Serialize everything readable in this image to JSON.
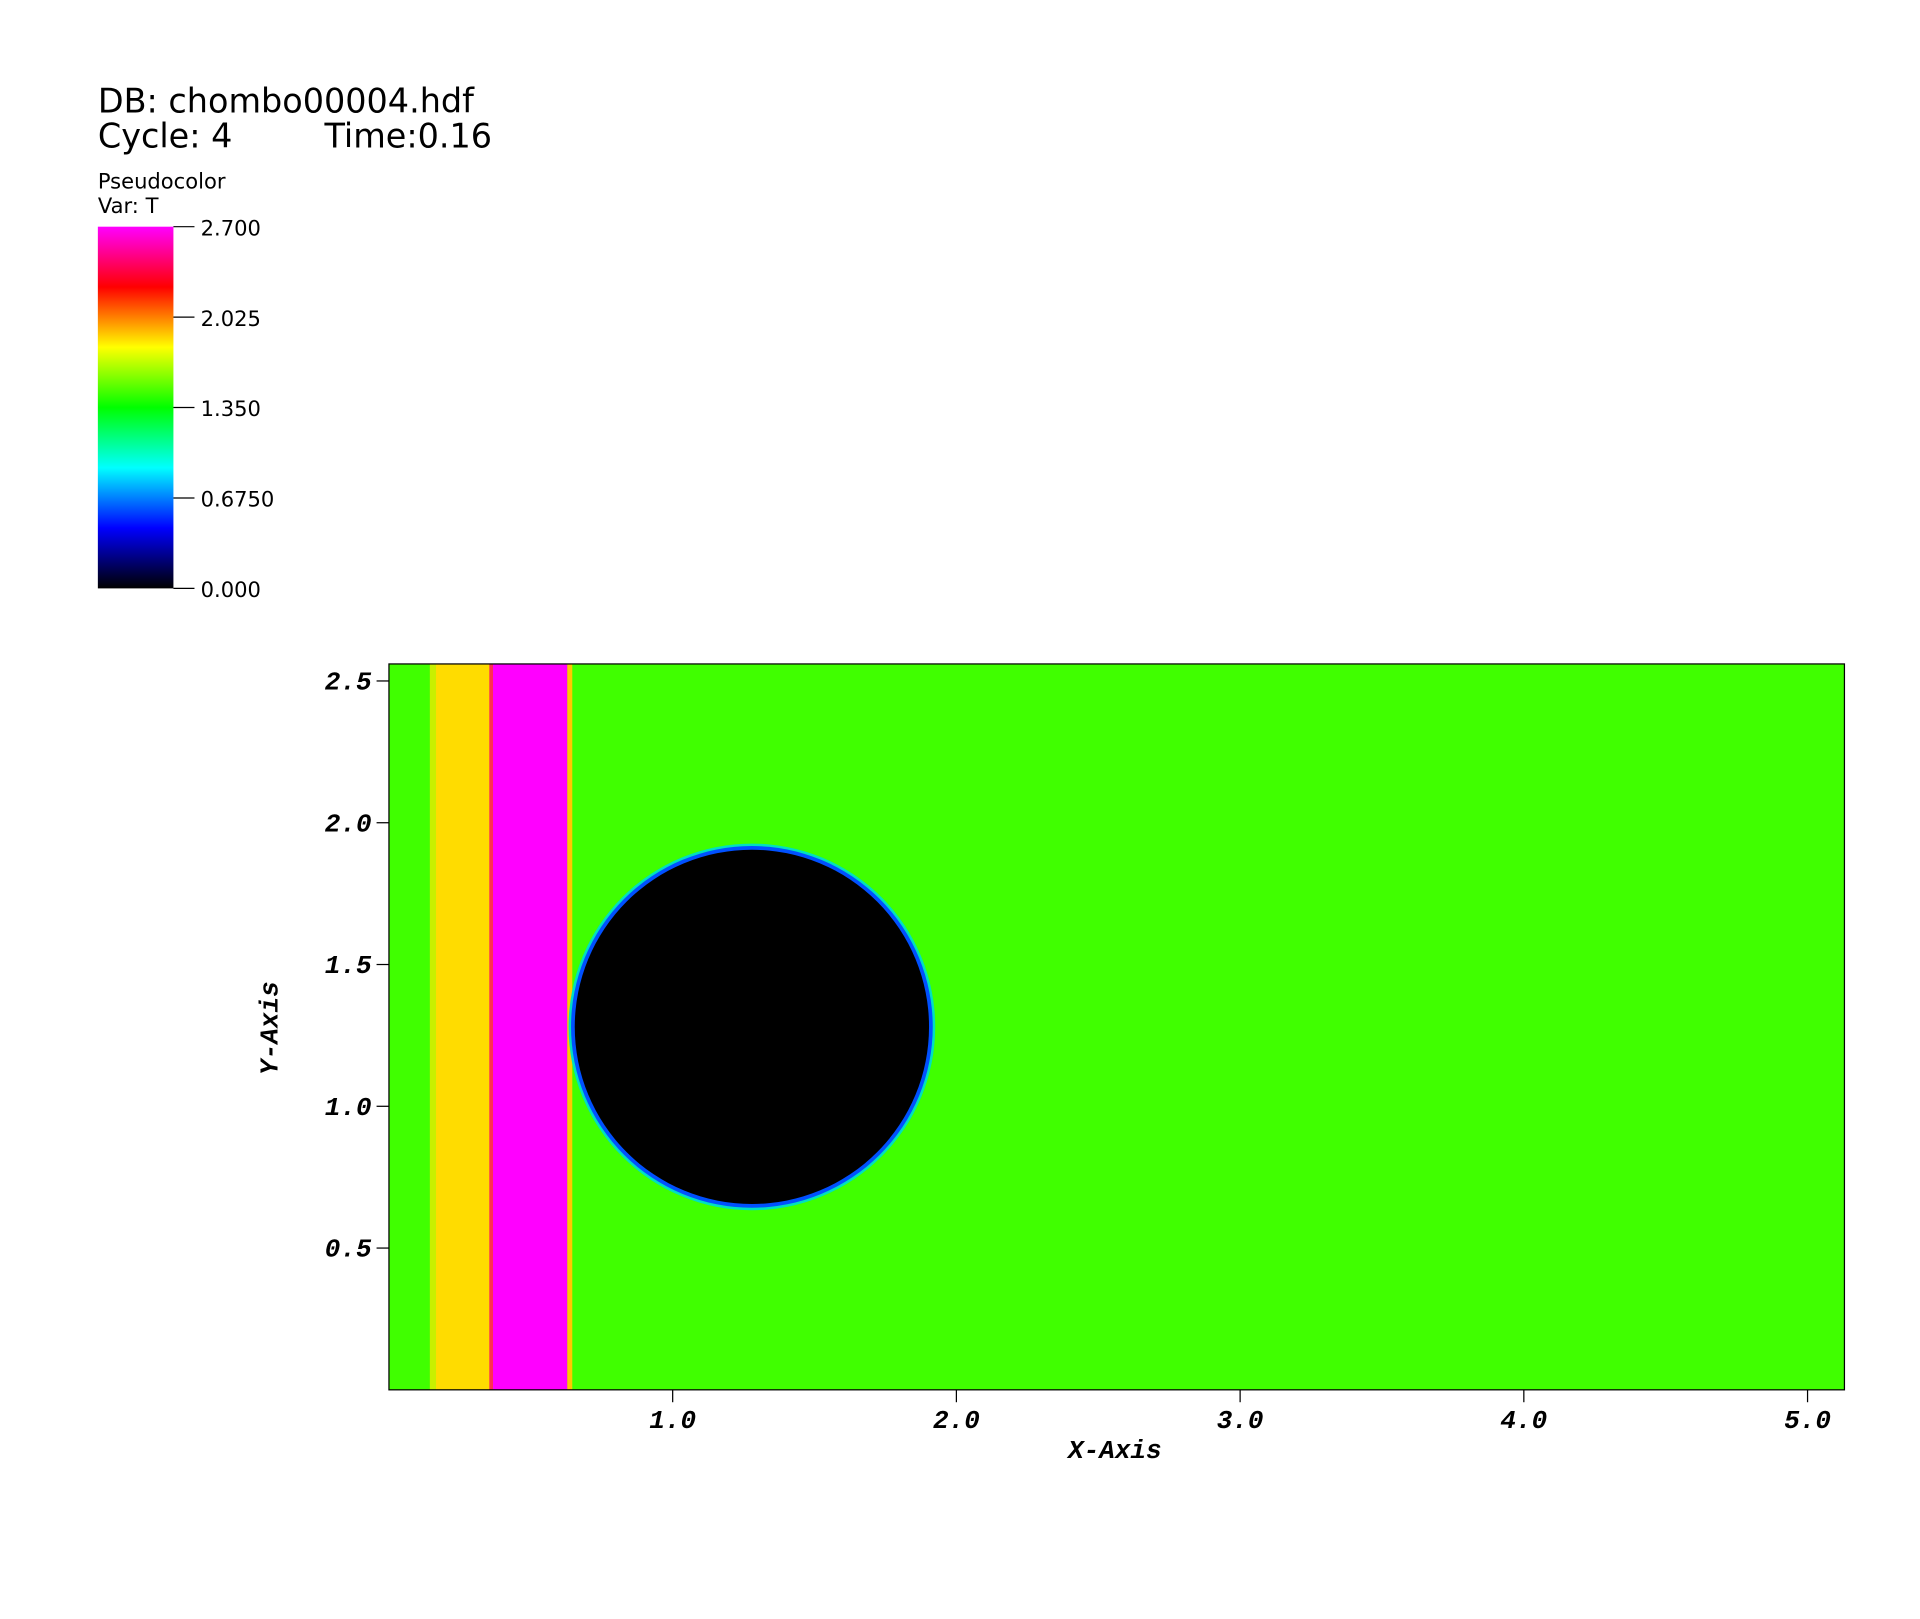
{
  "chart_data": {
    "type": "pseudocolor",
    "db_label": "DB: chombo00004.hdf",
    "cycle_label": "Cycle: 4",
    "time_label": "Time:0.16",
    "plot_label": "Pseudocolor",
    "var_label": "Var: T",
    "xlabel": "X-Axis",
    "ylabel": "Y-Axis",
    "colorbar": {
      "lim": [
        0,
        2.7
      ],
      "ticks": [
        {
          "value": 2.7,
          "label": "2.700"
        },
        {
          "value": 2.025,
          "label": "2.025"
        },
        {
          "value": 1.35,
          "label": "1.350"
        },
        {
          "value": 0.675,
          "label": "0.6750"
        },
        {
          "value": 0,
          "label": "0.000"
        }
      ],
      "colors": [
        "#000000",
        "#0000ff",
        "#00ffff",
        "#00ff00",
        "#ffff00",
        "#ff0000",
        "#ff00ff"
      ]
    },
    "xlim": [
      0,
      5.13
    ],
    "ylim": [
      0,
      2.56
    ],
    "xticks": [
      {
        "value": 1,
        "label": "1.0"
      },
      {
        "value": 2,
        "label": "2.0"
      },
      {
        "value": 3,
        "label": "3.0"
      },
      {
        "value": 4,
        "label": "4.0"
      },
      {
        "value": 5,
        "label": "5.0"
      }
    ],
    "yticks": [
      0.5,
      {
        "value": 1,
        "label": "1.0"
      },
      1.5,
      {
        "value": 2,
        "label": "2.0"
      },
      2.5
    ]
  }
}
